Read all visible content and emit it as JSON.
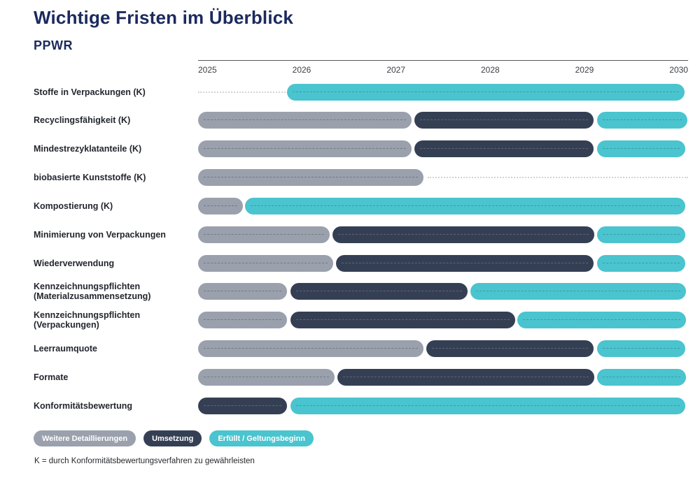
{
  "page": {
    "title": "Wichtige Fristen im Überblick",
    "subtitle": "PPWR",
    "footnote": "K = durch Konformitätsbewertungsverfahren zu gewährleisten"
  },
  "chart_data": {
    "type": "bar",
    "variant": "gantt-timeline",
    "title": "Wichtige Fristen im Überblick",
    "subtitle": "PPWR",
    "x_axis": {
      "ticks": [
        "2025",
        "2026",
        "2027",
        "2028",
        "2029",
        "2030"
      ],
      "range": [
        2025,
        2030
      ],
      "grid": false,
      "axis_line_color": "#55585e"
    },
    "legend_position": "bottom-left",
    "phases": {
      "gray": {
        "label": "Weitere Detaillierungen",
        "color": "#9aa0ac"
      },
      "dark": {
        "label": "Umsetzung",
        "color": "#353f54"
      },
      "teal": {
        "label": "Erfüllt / Geltungsbeginn",
        "color": "#4ac4ce"
      }
    },
    "legend": [
      "gray",
      "dark",
      "teal"
    ],
    "leader_color": "#d2d3d6",
    "rows": [
      {
        "label": "Stoffe in Verpackungen (K)",
        "segments": [
          {
            "phase": "leader",
            "start": 2025.0,
            "end": 2025.89
          },
          {
            "phase": "teal",
            "start": 2025.91,
            "end": 2029.97
          }
        ]
      },
      {
        "label": "Recyclingsfähigkeit (K)",
        "segments": [
          {
            "phase": "gray",
            "start": 2025.0,
            "end": 2027.18
          },
          {
            "phase": "dark",
            "start": 2027.21,
            "end": 2029.04
          },
          {
            "phase": "teal",
            "start": 2029.07,
            "end": 2029.99
          }
        ]
      },
      {
        "label": "Mindestrezyklatanteile (K)",
        "segments": [
          {
            "phase": "gray",
            "start": 2025.0,
            "end": 2027.18
          },
          {
            "phase": "dark",
            "start": 2027.21,
            "end": 2029.04
          },
          {
            "phase": "teal",
            "start": 2029.07,
            "end": 2029.97
          }
        ]
      },
      {
        "label": "biobasierte Kunststoffe (K)",
        "segments": [
          {
            "phase": "gray",
            "start": 2025.0,
            "end": 2027.3
          },
          {
            "phase": "leader",
            "start": 2027.34,
            "end": 2030.0
          }
        ]
      },
      {
        "label": "Kompostierung (K)",
        "segments": [
          {
            "phase": "gray",
            "start": 2025.0,
            "end": 2025.46
          },
          {
            "phase": "teal",
            "start": 2025.48,
            "end": 2029.97
          }
        ]
      },
      {
        "label": "Minimierung von Verpackungen",
        "segments": [
          {
            "phase": "gray",
            "start": 2025.0,
            "end": 2026.34
          },
          {
            "phase": "dark",
            "start": 2026.37,
            "end": 2029.04
          },
          {
            "phase": "teal",
            "start": 2029.07,
            "end": 2029.97
          }
        ]
      },
      {
        "label": "Wiederverwendung",
        "segments": [
          {
            "phase": "gray",
            "start": 2025.0,
            "end": 2026.38
          },
          {
            "phase": "dark",
            "start": 2026.41,
            "end": 2029.04
          },
          {
            "phase": "teal",
            "start": 2029.07,
            "end": 2029.97
          }
        ]
      },
      {
        "label": "Kennzeichnungspflichten",
        "label2": "(Materialzusammensetzung)",
        "segments": [
          {
            "phase": "gray",
            "start": 2025.0,
            "end": 2025.91
          },
          {
            "phase": "dark",
            "start": 2025.94,
            "end": 2027.75
          },
          {
            "phase": "teal",
            "start": 2027.78,
            "end": 2029.98
          }
        ]
      },
      {
        "label": "Kennzeichnungspflichten",
        "label2": "(Verpackungen)",
        "segments": [
          {
            "phase": "gray",
            "start": 2025.0,
            "end": 2025.91
          },
          {
            "phase": "dark",
            "start": 2025.94,
            "end": 2028.23
          },
          {
            "phase": "teal",
            "start": 2028.26,
            "end": 2029.98
          }
        ]
      },
      {
        "label": "Leerraumquote",
        "segments": [
          {
            "phase": "gray",
            "start": 2025.0,
            "end": 2027.3
          },
          {
            "phase": "dark",
            "start": 2027.33,
            "end": 2029.04
          },
          {
            "phase": "teal",
            "start": 2029.07,
            "end": 2029.97
          }
        ]
      },
      {
        "label": "Formate",
        "segments": [
          {
            "phase": "gray",
            "start": 2025.0,
            "end": 2026.39
          },
          {
            "phase": "dark",
            "start": 2026.42,
            "end": 2029.04
          },
          {
            "phase": "teal",
            "start": 2029.07,
            "end": 2029.98
          }
        ]
      },
      {
        "label": "Konformitätsbewertung",
        "segments": [
          {
            "phase": "dark",
            "start": 2025.0,
            "end": 2025.91
          },
          {
            "phase": "teal",
            "start": 2025.94,
            "end": 2029.97
          }
        ]
      }
    ]
  }
}
